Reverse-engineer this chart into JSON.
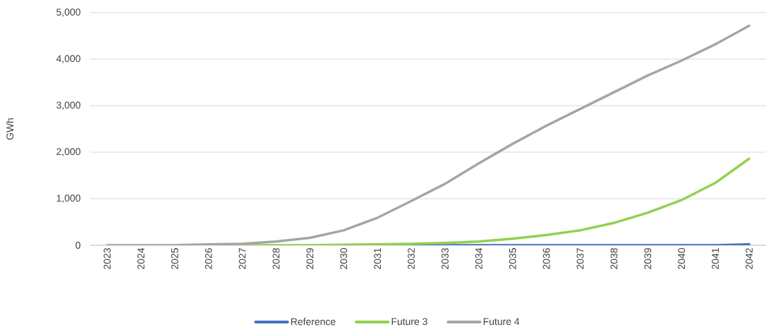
{
  "chart_data": {
    "type": "line",
    "ylabel": "GWh",
    "categories": [
      "2023",
      "2024",
      "2025",
      "2026",
      "2027",
      "2028",
      "2029",
      "2030",
      "2031",
      "2032",
      "2033",
      "2034",
      "2035",
      "2036",
      "2037",
      "2038",
      "2039",
      "2040",
      "2041",
      "2042"
    ],
    "series": [
      {
        "name": "Reference",
        "color": "#4472c4",
        "values": [
          null,
          null,
          null,
          null,
          null,
          null,
          null,
          null,
          0,
          0,
          0,
          0,
          0,
          0,
          0,
          0,
          0,
          0,
          0,
          20
        ]
      },
      {
        "name": "Future 3",
        "color": "#92d050",
        "values": [
          null,
          null,
          null,
          0,
          0,
          0,
          0,
          10,
          20,
          30,
          50,
          80,
          140,
          220,
          320,
          480,
          700,
          970,
          1340,
          1860
        ]
      },
      {
        "name": "Future 4",
        "color": "#a5a5a5",
        "values": [
          0,
          0,
          0,
          20,
          30,
          80,
          160,
          320,
          590,
          950,
          1320,
          1760,
          2180,
          2570,
          2930,
          3290,
          3650,
          3970,
          4320,
          4720
        ]
      }
    ],
    "ylim": [
      0,
      5000
    ],
    "yticks": [
      0,
      {
        "value": 1000,
        "label": "1,000"
      },
      {
        "value": 2000,
        "label": "2,000"
      },
      {
        "value": 3000,
        "label": "3,000"
      },
      {
        "value": 4000,
        "label": "4,000"
      },
      {
        "value": 5000,
        "label": "5,000"
      }
    ],
    "grid": "y",
    "legend": "bottom",
    "marker": "none",
    "line_style": "solid"
  }
}
